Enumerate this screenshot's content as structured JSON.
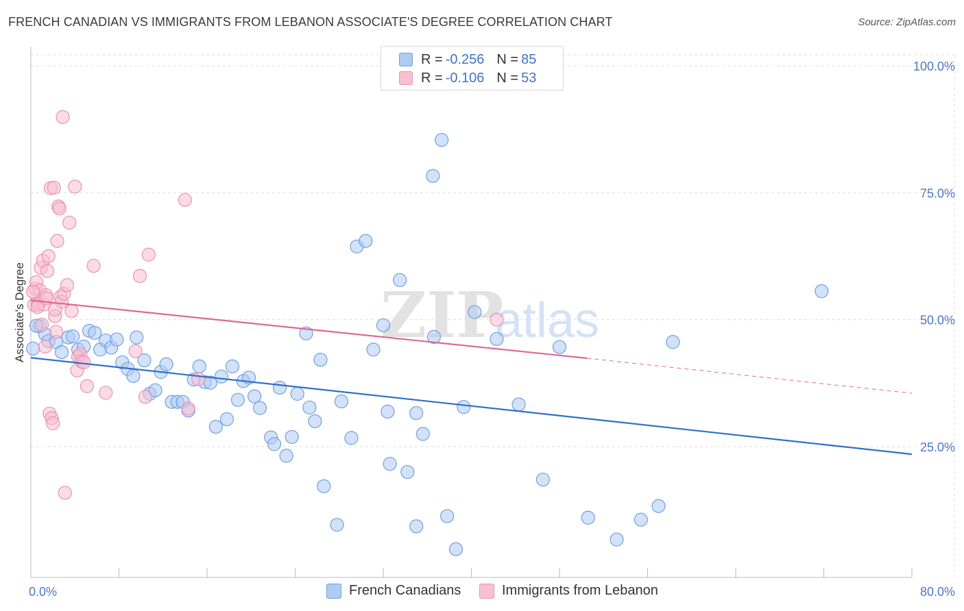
{
  "title": "FRENCH CANADIAN VS IMMIGRANTS FROM LEBANON ASSOCIATE'S DEGREE CORRELATION CHART",
  "source": "Source: ZipAtlas.com",
  "watermark": {
    "zip": "ZIP",
    "atlas": "atlas"
  },
  "legend": {
    "rows": [
      {
        "r_label": "R =",
        "r_value": "-0.256",
        "n_label": "N =",
        "n_value": "85"
      },
      {
        "r_label": "R =",
        "r_value": "-0.106",
        "n_label": "N =",
        "n_value": "53"
      }
    ]
  },
  "bottom_legend": {
    "series1": "French Canadians",
    "series2": "Immigrants from Lebanon"
  },
  "colors": {
    "blue_fill": "#aecbf2",
    "blue_stroke": "#6f9fe0",
    "blue_line": "#2f6fcc",
    "pink_fill": "#f7c0d2",
    "pink_stroke": "#ec8fae",
    "pink_line": "#e06890",
    "tick_text": "#4a78c2",
    "grid": "#dddddd"
  },
  "chart_data": {
    "type": "scatter",
    "title": "FRENCH CANADIAN VS IMMIGRANTS FROM LEBANON ASSOCIATE'S DEGREE CORRELATION CHART",
    "xlabel": "",
    "ylabel": "Associate's Degree",
    "xlim": [
      0,
      80
    ],
    "ylim": [
      0,
      105
    ],
    "x_tick_labels": [
      "0.0%",
      "80.0%"
    ],
    "y_ticks": [
      25,
      50,
      75,
      100
    ],
    "y_tick_labels": [
      "25.0%",
      "50.0%",
      "75.0%",
      "100.0%"
    ],
    "grid": true,
    "series": [
      {
        "name": "French Canadians",
        "R": -0.256,
        "N": 85,
        "trend": {
          "x0": 0,
          "y0": 42.5,
          "x1": 80,
          "y1": 23.5,
          "dashed_to": 80
        },
        "points": [
          [
            0.2,
            44.3
          ],
          [
            0.8,
            48.7
          ],
          [
            1.3,
            47.1
          ],
          [
            1.6,
            45.8
          ],
          [
            2.3,
            45.6
          ],
          [
            2.8,
            43.6
          ],
          [
            3.4,
            46.5
          ],
          [
            3.8,
            46.7
          ],
          [
            4.3,
            44.1
          ],
          [
            4.8,
            44.7
          ],
          [
            5.3,
            47.8
          ],
          [
            5.8,
            47.4
          ],
          [
            6.3,
            44.1
          ],
          [
            6.8,
            45.9
          ],
          [
            7.3,
            44.5
          ],
          [
            7.8,
            46.1
          ],
          [
            8.3,
            41.6
          ],
          [
            8.8,
            40.3
          ],
          [
            9.3,
            38.9
          ],
          [
            9.6,
            46.5
          ],
          [
            10.3,
            42.0
          ],
          [
            10.8,
            35.4
          ],
          [
            11.3,
            36.1
          ],
          [
            11.8,
            39.7
          ],
          [
            12.3,
            41.2
          ],
          [
            12.8,
            33.8
          ],
          [
            13.3,
            33.8
          ],
          [
            13.8,
            33.8
          ],
          [
            14.3,
            32.1
          ],
          [
            14.8,
            38.2
          ],
          [
            15.3,
            40.8
          ],
          [
            15.8,
            37.7
          ],
          [
            16.3,
            37.6
          ],
          [
            16.8,
            28.9
          ],
          [
            17.3,
            38.8
          ],
          [
            17.8,
            30.4
          ],
          [
            18.3,
            40.8
          ],
          [
            18.8,
            34.2
          ],
          [
            19.3,
            37.9
          ],
          [
            19.8,
            38.6
          ],
          [
            20.3,
            34.9
          ],
          [
            20.8,
            32.6
          ],
          [
            21.8,
            26.8
          ],
          [
            22.1,
            25.5
          ],
          [
            22.6,
            36.6
          ],
          [
            23.2,
            23.2
          ],
          [
            23.7,
            26.9
          ],
          [
            24.2,
            35.4
          ],
          [
            25.0,
            47.3
          ],
          [
            25.3,
            32.7
          ],
          [
            25.8,
            30.0
          ],
          [
            26.3,
            42.1
          ],
          [
            26.6,
            17.2
          ],
          [
            27.8,
            9.6
          ],
          [
            28.2,
            33.9
          ],
          [
            29.1,
            26.7
          ],
          [
            29.6,
            64.4
          ],
          [
            30.4,
            65.5
          ],
          [
            31.1,
            44.1
          ],
          [
            32.0,
            48.9
          ],
          [
            32.4,
            31.9
          ],
          [
            32.6,
            21.6
          ],
          [
            33.5,
            57.8
          ],
          [
            34.2,
            20.0
          ],
          [
            35.0,
            31.6
          ],
          [
            35.0,
            9.3
          ],
          [
            35.6,
            27.5
          ],
          [
            36.5,
            78.3
          ],
          [
            36.6,
            46.6
          ],
          [
            37.3,
            85.4
          ],
          [
            37.8,
            11.3
          ],
          [
            38.6,
            4.8
          ],
          [
            39.3,
            32.8
          ],
          [
            40.3,
            51.5
          ],
          [
            42.3,
            46.2
          ],
          [
            44.3,
            33.3
          ],
          [
            46.5,
            18.5
          ],
          [
            48.0,
            44.6
          ],
          [
            50.6,
            11.0
          ],
          [
            53.2,
            6.7
          ],
          [
            55.4,
            10.6
          ],
          [
            57.0,
            13.3
          ],
          [
            58.3,
            45.6
          ],
          [
            71.8,
            55.6
          ],
          [
            0.5,
            48.8
          ]
        ]
      },
      {
        "name": "Immigrants from Lebanon",
        "R": -0.106,
        "N": 53,
        "trend": {
          "x0": 0,
          "y0": 53.8,
          "x1": 50.5,
          "y1": 42.4,
          "dashed_to": 80,
          "dashed_end_y": 35.5
        },
        "points": [
          [
            0.3,
            52.9
          ],
          [
            0.4,
            56.1
          ],
          [
            0.5,
            57.4
          ],
          [
            0.6,
            53.4
          ],
          [
            0.7,
            53.0
          ],
          [
            0.8,
            55.8
          ],
          [
            0.9,
            60.2
          ],
          [
            1.0,
            49.0
          ],
          [
            1.1,
            61.6
          ],
          [
            1.2,
            53.0
          ],
          [
            1.3,
            44.7
          ],
          [
            1.4,
            54.8
          ],
          [
            1.5,
            59.6
          ],
          [
            1.6,
            62.5
          ],
          [
            1.7,
            31.5
          ],
          [
            1.8,
            75.9
          ],
          [
            1.9,
            30.6
          ],
          [
            2.0,
            29.6
          ],
          [
            2.1,
            76.0
          ],
          [
            2.2,
            50.7
          ],
          [
            2.3,
            47.6
          ],
          [
            2.4,
            65.5
          ],
          [
            2.5,
            72.3
          ],
          [
            2.6,
            71.9
          ],
          [
            2.7,
            54.5
          ],
          [
            2.8,
            53.5
          ],
          [
            2.9,
            89.9
          ],
          [
            3.0,
            55.1
          ],
          [
            3.1,
            15.9
          ],
          [
            3.3,
            56.8
          ],
          [
            3.5,
            69.1
          ],
          [
            3.7,
            51.7
          ],
          [
            4.0,
            76.2
          ],
          [
            4.2,
            40.0
          ],
          [
            4.3,
            42.7
          ],
          [
            4.5,
            43.2
          ],
          [
            4.6,
            41.8
          ],
          [
            4.8,
            41.6
          ],
          [
            5.1,
            36.9
          ],
          [
            5.7,
            60.6
          ],
          [
            6.8,
            35.6
          ],
          [
            9.5,
            43.8
          ],
          [
            9.9,
            58.6
          ],
          [
            10.4,
            34.8
          ],
          [
            10.7,
            62.8
          ],
          [
            14.0,
            73.6
          ],
          [
            14.3,
            32.5
          ],
          [
            15.2,
            38.3
          ],
          [
            42.3,
            50.0
          ],
          [
            0.2,
            55.5
          ],
          [
            0.6,
            52.5
          ],
          [
            1.4,
            54.2
          ],
          [
            2.2,
            52.0
          ]
        ]
      }
    ]
  }
}
